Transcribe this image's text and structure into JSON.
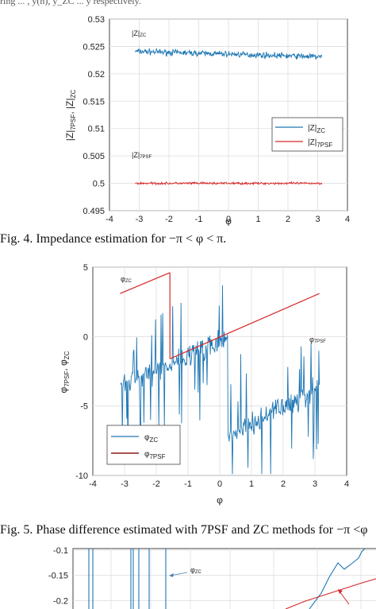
{
  "top_fragment": "ring ... , y(n), y_ZC ... y respectively.",
  "fig4": {
    "caption": "Fig. 4. Impedance estimation for −π < φ < π.",
    "chart_data": {
      "type": "line",
      "xlabel": "φ",
      "ylabel": "|Z|7PSF, |Z|ZC",
      "xlim": [
        -4,
        4
      ],
      "ylim": [
        0.495,
        0.53
      ],
      "xticks": [
        "-4",
        "-3",
        "-2",
        "-1",
        "0",
        "1",
        "2",
        "3",
        "4"
      ],
      "yticks": [
        "0.495",
        "0.5",
        "0.505",
        "0.51",
        "0.515",
        "0.52",
        "0.525",
        "0.53"
      ],
      "grid": true,
      "legend_position": "lower-right",
      "series": [
        {
          "name": "|Z|ZC",
          "color": "#1f77b4",
          "x_range": [
            -3.14,
            3.14
          ],
          "mean": 0.5236,
          "noise_amplitude": 0.0008
        },
        {
          "name": "|Z|7PSF",
          "color": "#d62728",
          "x_range": [
            -3.14,
            3.14
          ],
          "mean": 0.5,
          "noise_amplitude": 0.0003
        }
      ],
      "annotations": [
        "|Z|ZC",
        "|Z|7PSF"
      ]
    }
  },
  "fig5": {
    "caption": "Fig. 5. Phase difference estimated with 7PSF and ZC methods for −π <φ",
    "chart_data": {
      "type": "line",
      "xlabel": "φ",
      "ylabel": "φ7PSF, φZC",
      "xlim": [
        -4,
        4
      ],
      "ylim": [
        -10,
        5
      ],
      "xticks": [
        "-4",
        "-3",
        "-2",
        "-1",
        "0",
        "1",
        "2",
        "3",
        "4"
      ],
      "yticks": [
        "-10",
        "-5",
        "0",
        "5"
      ],
      "grid": true,
      "legend_position": "lower-left",
      "series": [
        {
          "name": "φZC",
          "color": "#1f77b4",
          "x_range": [
            -3.14,
            3.14
          ],
          "description": "noisy phase, mean rises from -3.5 to 0 then drops to -7 and rises to -3.5"
        },
        {
          "name": "φ7PSF",
          "color": "#d62728",
          "segments": [
            {
              "x": [
                -3.14,
                -1.57
              ],
              "y": [
                3.1,
                4.6
              ]
            },
            {
              "x": [
                -1.57,
                -1.57
              ],
              "y": [
                4.6,
                -1.6
              ]
            },
            {
              "x": [
                -1.57,
                3.14
              ],
              "y": [
                -1.6,
                3.1
              ]
            }
          ]
        }
      ],
      "annotations": [
        "φZC",
        "φ7PSF"
      ]
    }
  },
  "fig6": {
    "chart_data": {
      "type": "line",
      "yticks": [
        "-0.1",
        "-0.15",
        "-0.2"
      ],
      "ylim": [
        -0.25,
        -0.1
      ],
      "grid": true,
      "annotations": [
        "φZC"
      ]
    }
  }
}
